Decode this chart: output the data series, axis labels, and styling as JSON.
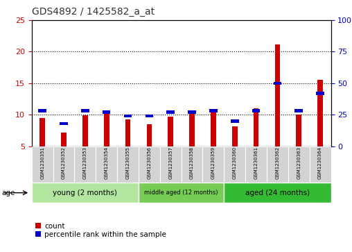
{
  "title": "GDS4892 / 1425582_a_at",
  "samples": [
    "GSM1230351",
    "GSM1230352",
    "GSM1230353",
    "GSM1230354",
    "GSM1230355",
    "GSM1230356",
    "GSM1230357",
    "GSM1230358",
    "GSM1230359",
    "GSM1230360",
    "GSM1230361",
    "GSM1230362",
    "GSM1230363",
    "GSM1230364"
  ],
  "count_values": [
    9.5,
    7.1,
    9.9,
    10.4,
    9.3,
    8.5,
    9.7,
    10.5,
    10.9,
    8.1,
    11.0,
    21.2,
    10.0,
    15.5
  ],
  "percentile_values": [
    28,
    18,
    28,
    27,
    24,
    24,
    27,
    27,
    28,
    20,
    28,
    50,
    28,
    42
  ],
  "bar_color": "#cc0000",
  "percentile_color": "#0000cc",
  "ylim_left": [
    5,
    25
  ],
  "ylim_right": [
    0,
    100
  ],
  "yticks_left": [
    5,
    10,
    15,
    20,
    25
  ],
  "yticks_right": [
    0,
    25,
    50,
    75,
    100
  ],
  "groups": [
    {
      "label": "young (2 months)",
      "start": 0,
      "end": 5
    },
    {
      "label": "middle aged (12 months)",
      "start": 5,
      "end": 9
    },
    {
      "label": "aged (24 months)",
      "start": 9,
      "end": 14
    }
  ],
  "group_colors": [
    "#b2e5a0",
    "#77cc55",
    "#33bb33"
  ],
  "bar_width": 0.25,
  "background_color": "#ffffff",
  "tick_label_color_left": "#cc0000",
  "tick_label_color_right": "#0000cc",
  "legend_count_label": "count",
  "legend_percentile_label": "percentile rank within the sample",
  "age_label": "age",
  "title_fontsize": 10
}
